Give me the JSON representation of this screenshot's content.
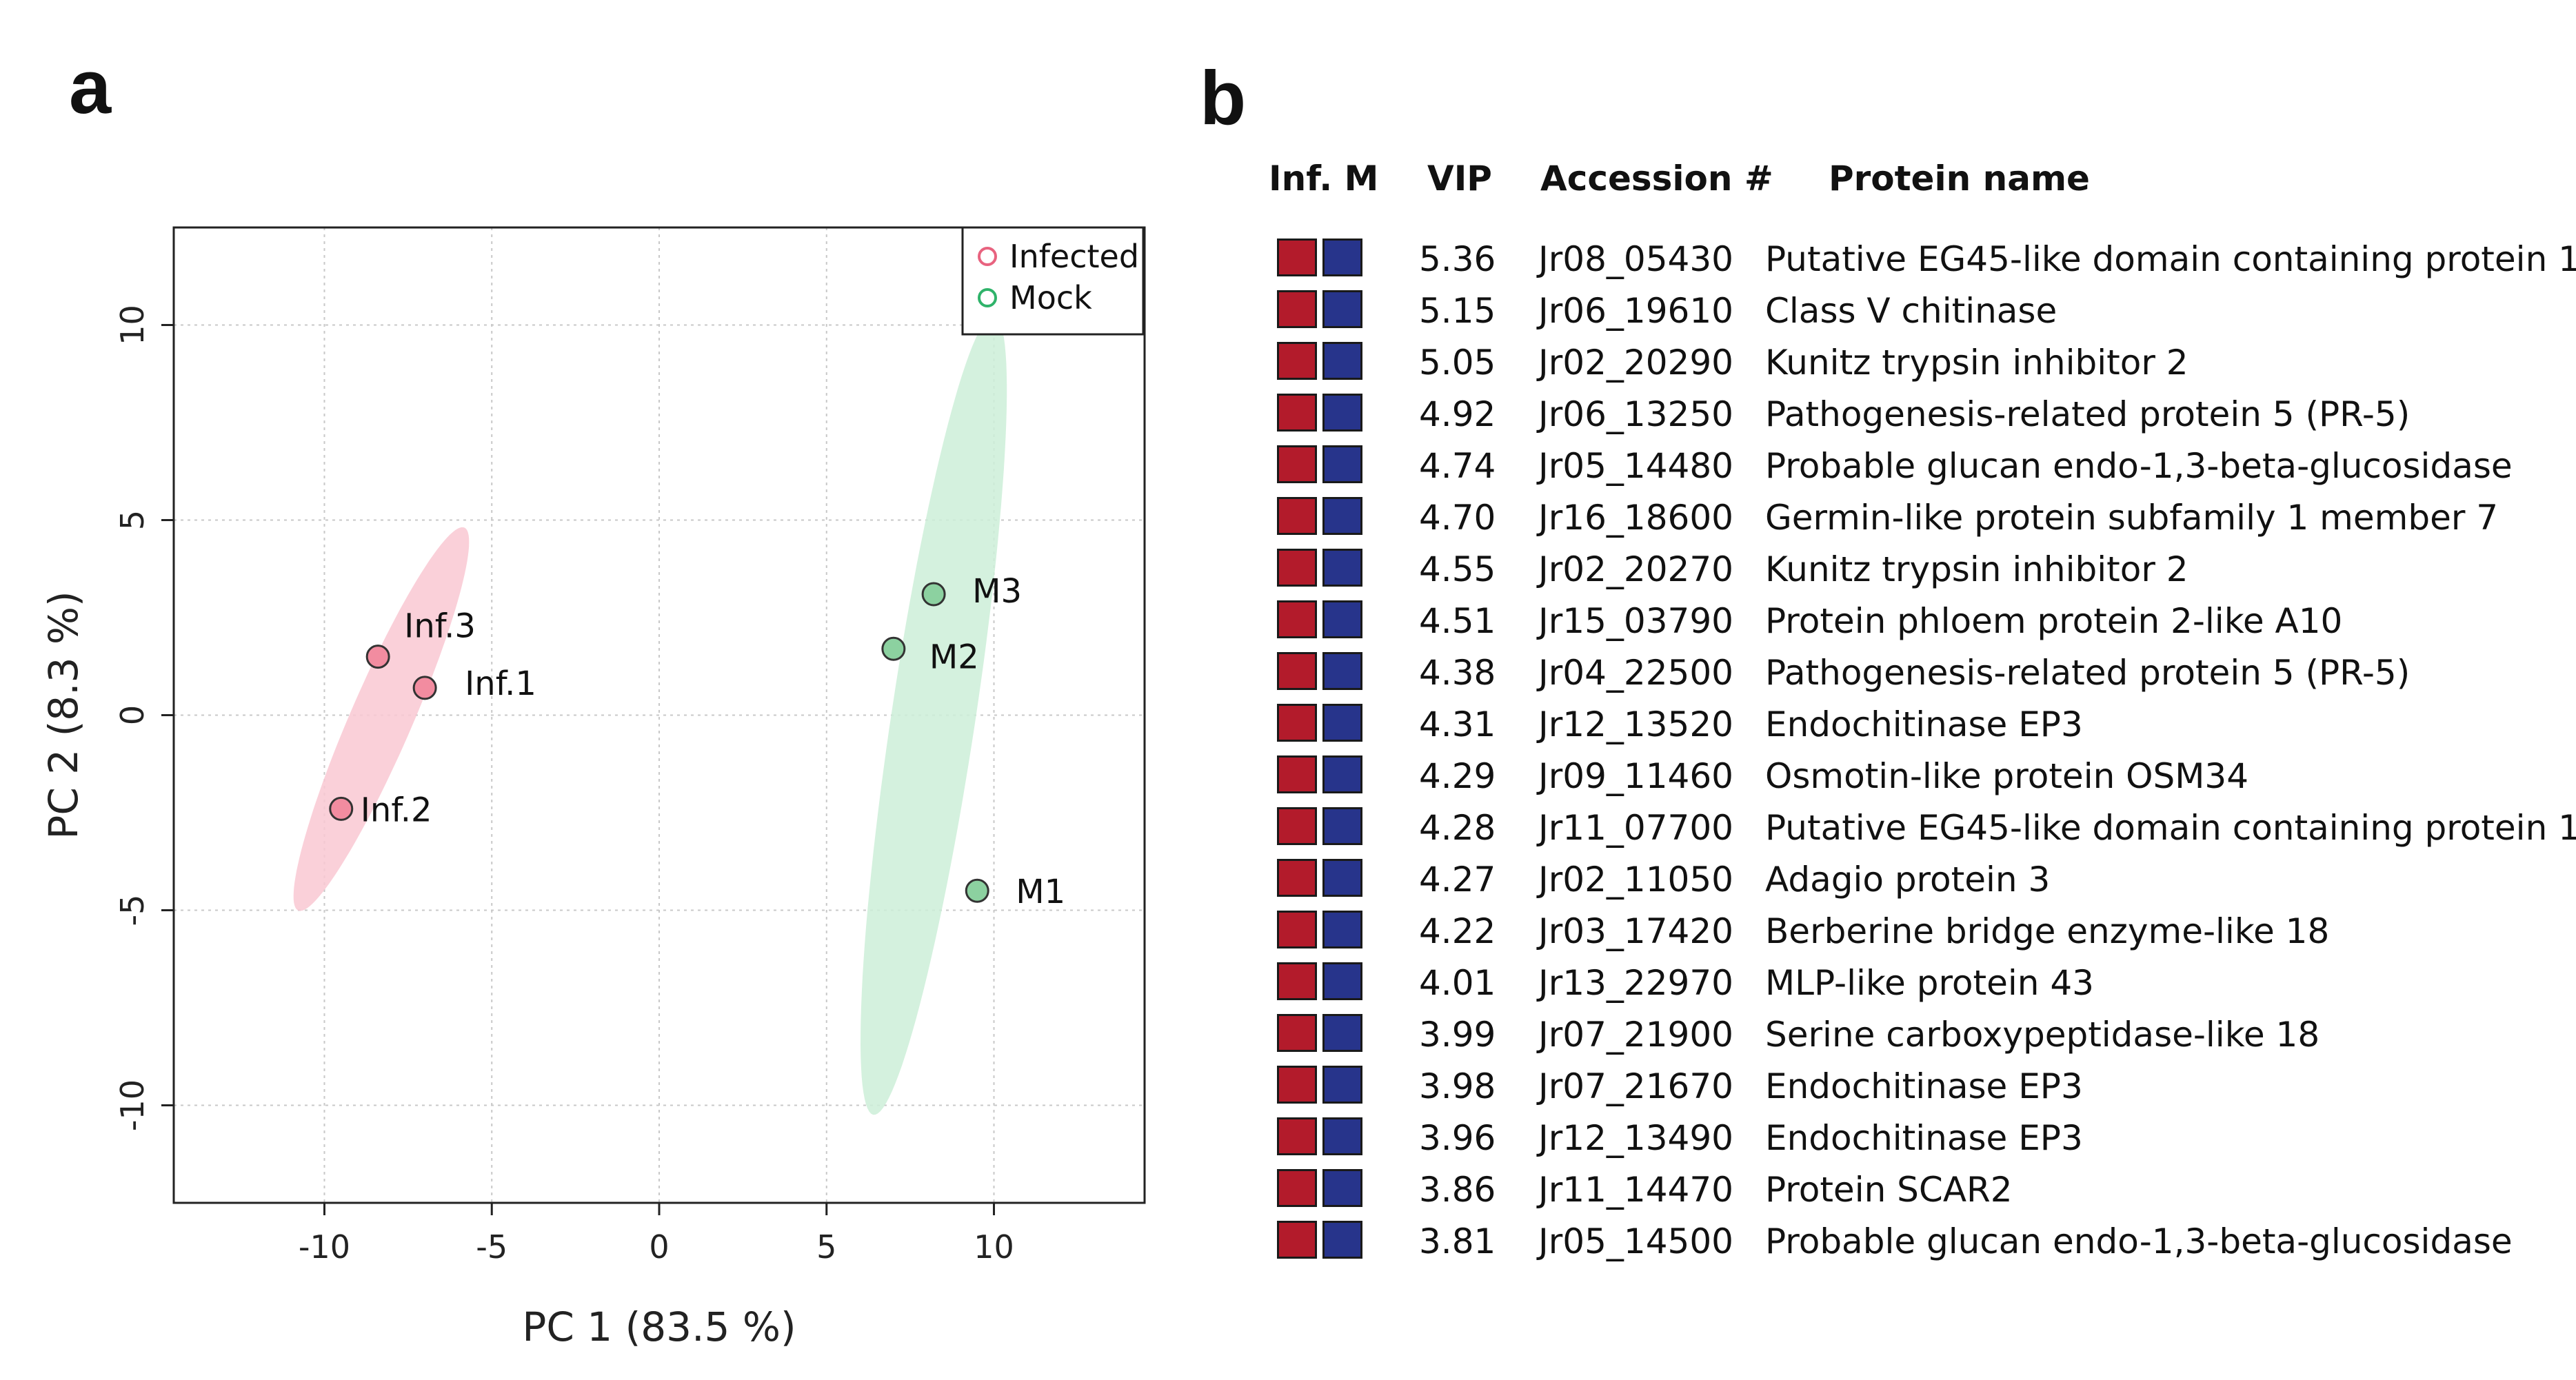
{
  "panel_a_label": "a",
  "panel_b_label": "b",
  "chart_data": {
    "type": "scatter",
    "xlabel": "PC 1 (83.5 %)",
    "ylabel": "PC 2 (8.3 %)",
    "xlim": [
      -14.5,
      14.5
    ],
    "ylim": [
      -12.5,
      12.5
    ],
    "xticks": [
      -10,
      -5,
      0,
      5,
      10
    ],
    "yticks": [
      -10,
      -5,
      0,
      5,
      10
    ],
    "grid": true,
    "legend_position": "top-right",
    "series": [
      {
        "name": "Infected",
        "color": "#e8637f",
        "fill": "#f28ca0",
        "ellipse_fill": "#f9c8d2",
        "points": [
          {
            "label": "Inf.1",
            "x": -7.0,
            "y": 0.7
          },
          {
            "label": "Inf.2",
            "x": -9.5,
            "y": -2.4
          },
          {
            "label": "Inf.3",
            "x": -8.4,
            "y": 1.5
          }
        ],
        "ellipse": {
          "cx": -8.3,
          "cy": -0.1,
          "rx": 5.5,
          "ry": 0.9,
          "angle_deg": 63
        }
      },
      {
        "name": "Mock",
        "color": "#2fb36a",
        "fill": "#8cd1a0",
        "ellipse_fill": "#cdeed8",
        "points": [
          {
            "label": "M1",
            "x": 9.5,
            "y": -4.5
          },
          {
            "label": "M2",
            "x": 7.0,
            "y": 1.7
          },
          {
            "label": "M3",
            "x": 8.2,
            "y": 3.1
          }
        ],
        "ellipse": {
          "cx": 8.2,
          "cy": 0.0,
          "rx": 10.4,
          "ry": 1.25,
          "angle_deg": 80
        }
      }
    ]
  },
  "table": {
    "headers": {
      "inf_m": "Inf. M",
      "vip": "VIP",
      "accession": "Accession #",
      "protein": "Protein name"
    },
    "infected_color": "#b31b2b",
    "mock_color": "#27348b",
    "rows": [
      {
        "vip": "5.36",
        "accession": "Jr08_05430",
        "protein": "Putative EG45-like domain containing protein 1"
      },
      {
        "vip": "5.15",
        "accession": "Jr06_19610",
        "protein": "Class V chitinase"
      },
      {
        "vip": "5.05",
        "accession": "Jr02_20290",
        "protein": "Kunitz trypsin inhibitor 2"
      },
      {
        "vip": "4.92",
        "accession": "Jr06_13250",
        "protein": "Pathogenesis-related protein 5 (PR-5)"
      },
      {
        "vip": "4.74",
        "accession": "Jr05_14480",
        "protein": "Probable glucan endo-1,3-beta-glucosidase"
      },
      {
        "vip": "4.70",
        "accession": "Jr16_18600",
        "protein": "Germin-like protein subfamily 1 member 7"
      },
      {
        "vip": "4.55",
        "accession": "Jr02_20270",
        "protein": "Kunitz trypsin inhibitor 2"
      },
      {
        "vip": "4.51",
        "accession": "Jr15_03790",
        "protein": "Protein phloem protein 2-like A10"
      },
      {
        "vip": "4.38",
        "accession": "Jr04_22500",
        "protein": "Pathogenesis-related protein 5 (PR-5)"
      },
      {
        "vip": "4.31",
        "accession": "Jr12_13520",
        "protein": "Endochitinase EP3"
      },
      {
        "vip": "4.29",
        "accession": "Jr09_11460",
        "protein": "Osmotin-like protein OSM34"
      },
      {
        "vip": "4.28",
        "accession": "Jr11_07700",
        "protein": "Putative EG45-like domain containing protein 1"
      },
      {
        "vip": "4.27",
        "accession": "Jr02_11050",
        "protein": "Adagio protein 3"
      },
      {
        "vip": "4.22",
        "accession": "Jr03_17420",
        "protein": "Berberine bridge enzyme-like 18"
      },
      {
        "vip": "4.01",
        "accession": "Jr13_22970",
        "protein": "MLP-like protein 43"
      },
      {
        "vip": "3.99",
        "accession": "Jr07_21900",
        "protein": "Serine carboxypeptidase-like 18"
      },
      {
        "vip": "3.98",
        "accession": "Jr07_21670",
        "protein": "Endochitinase EP3"
      },
      {
        "vip": "3.96",
        "accession": "Jr12_13490",
        "protein": "Endochitinase EP3"
      },
      {
        "vip": "3.86",
        "accession": "Jr11_14470",
        "protein": "Protein SCAR2"
      },
      {
        "vip": "3.81",
        "accession": "Jr05_14500",
        "protein": "Probable glucan endo-1,3-beta-glucosidase"
      }
    ]
  }
}
